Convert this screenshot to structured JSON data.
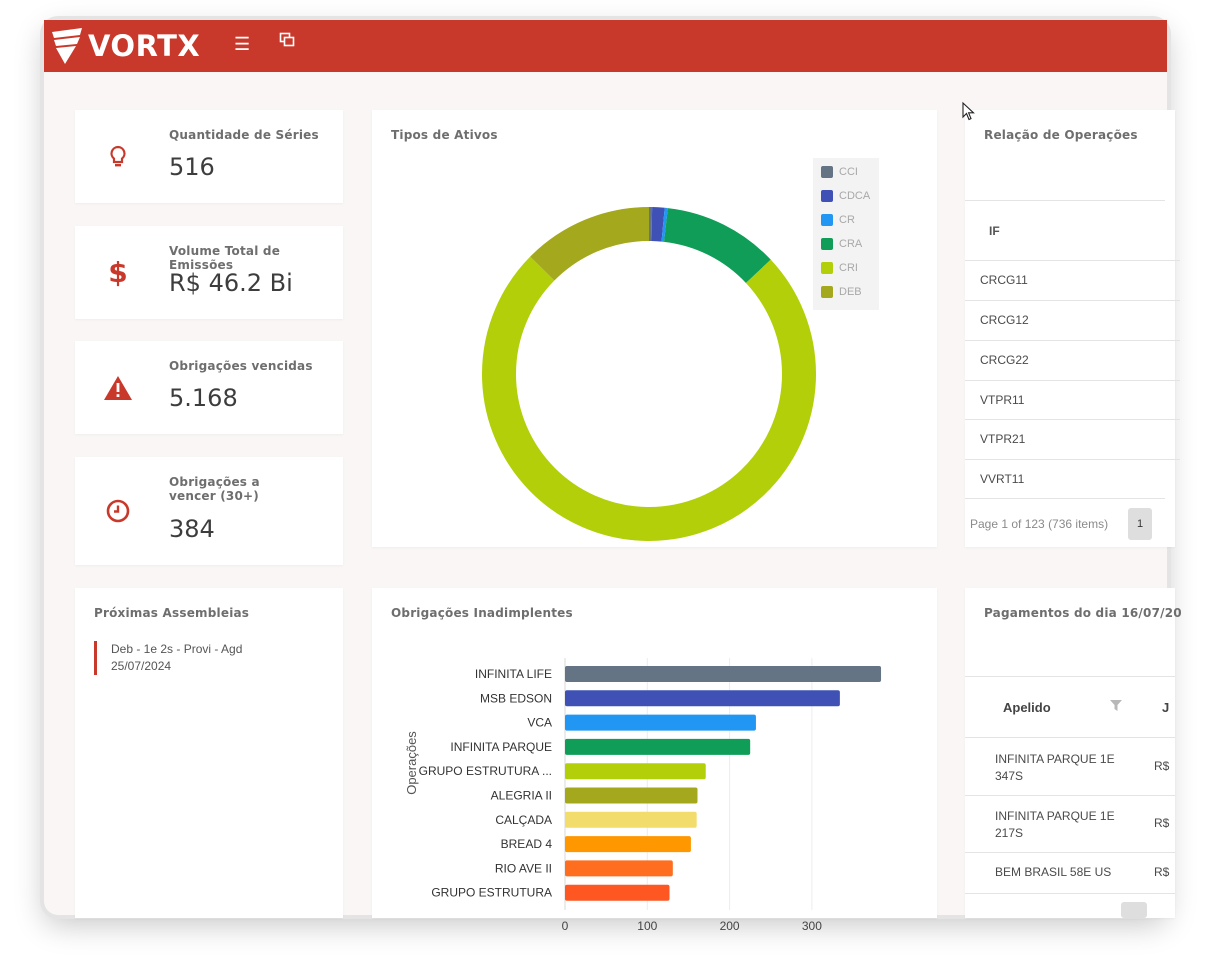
{
  "brand": {
    "name": "VORTX"
  },
  "kpis": [
    {
      "title": "Quantidade de Séries",
      "value": "516"
    },
    {
      "title": "Volume Total de Emissões",
      "value": "R$ 46.2 Bi"
    },
    {
      "title": "Obrigações vencidas",
      "value": "5.168"
    },
    {
      "title": "Obrigações a vencer (30+)",
      "value": "384"
    }
  ],
  "asset_types": {
    "title": "Tipos de Ativos",
    "legend": [
      "CCI",
      "CDCA",
      "CR",
      "CRA",
      "CRI",
      "DEB"
    ]
  },
  "operations": {
    "title": "Relação de Operações",
    "column": "IF",
    "rows": [
      "CRCG11",
      "CRCG12",
      "CRCG22",
      "VTPR11",
      "VTPR21",
      "VVRT11"
    ],
    "pager_text": "Page 1 of 123 (736 items)",
    "page": "1"
  },
  "assemblies": {
    "title": "Próximas Assembleias",
    "item_line1": "Deb - 1e 2s - Provi - Agd",
    "item_line2": "25/07/2024"
  },
  "defaults": {
    "title": "Obrigações Inadimplentes",
    "ylabel": "Operações"
  },
  "payments": {
    "title": "Pagamentos do dia 16/07/20",
    "column": "Apelido",
    "column2": "J",
    "rows": [
      {
        "line1": "INFINITA PARQUE 1E",
        "line2": "347S",
        "value": "R$"
      },
      {
        "line1": "INFINITA PARQUE 1E",
        "line2": "217S",
        "value": "R$"
      },
      {
        "line1": "BEM BRASIL 58E US",
        "line2": "",
        "value": "R$"
      }
    ]
  },
  "colors": {
    "brand": "#c8392b",
    "CCI": "#647484",
    "CDCA": "#3f51b5",
    "CR": "#2196f3",
    "CRA": "#0f9d58",
    "CRI": "#b2cf0a",
    "DEB": "#a4a81c"
  },
  "chart_data": [
    {
      "type": "pie",
      "title": "Tipos de Ativos",
      "categories": [
        "CCI",
        "CDCA",
        "CR",
        "CRA",
        "CRI",
        "DEB"
      ],
      "values": [
        0.3,
        1.2,
        0.3,
        11.2,
        74.4,
        12.6
      ],
      "legend": "top-right",
      "donut": true
    },
    {
      "type": "bar",
      "orientation": "horizontal",
      "title": "Obrigações Inadimplentes",
      "ylabel": "Operações",
      "xlabel": "",
      "categories": [
        "INFINITA LIFE",
        "MSB EDSON",
        "VCA",
        "INFINITA PARQUE",
        "GRUPO ESTRUTURA ...",
        "ALEGRIA II",
        "CALÇADA",
        "BREAD 4",
        "RIO AVE II",
        "GRUPO ESTRUTURA"
      ],
      "values": [
        384,
        334,
        232,
        225,
        171,
        161,
        160,
        153,
        131,
        127
      ],
      "colors": [
        "#647484",
        "#3f51b5",
        "#2196f3",
        "#0f9d58",
        "#b2cf0a",
        "#a4a81c",
        "#f2dc6b",
        "#ff9800",
        "#ff6d1f",
        "#ff5722"
      ],
      "xticks": [
        "0",
        "100",
        "200",
        "300"
      ],
      "xlim": [
        0,
        400
      ],
      "grid": true
    }
  ]
}
